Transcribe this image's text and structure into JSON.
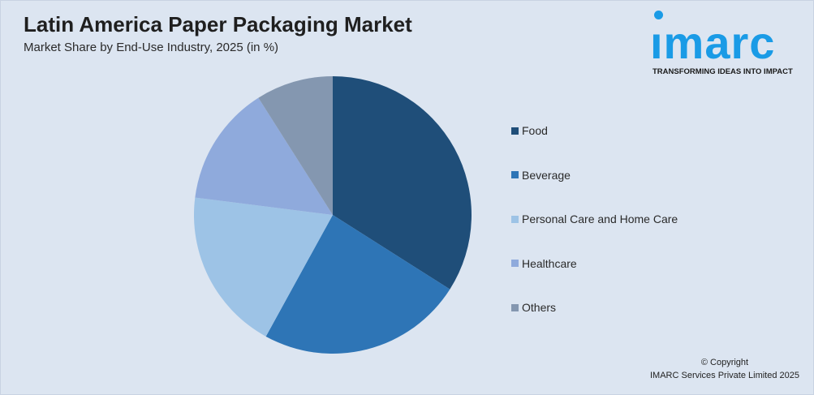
{
  "chart_data": {
    "type": "pie",
    "title": "Latin America Paper Packaging Market",
    "subtitle": "Market Share by End-Use Industry, 2025 (in %)",
    "categories": [
      "Food",
      "Beverage",
      "Personal Care and Home Care",
      "Healthcare",
      "Others"
    ],
    "values": [
      34,
      24,
      19,
      14,
      9
    ],
    "colors": [
      "#1f4e79",
      "#2e75b6",
      "#9dc3e6",
      "#8faadc",
      "#8497b0"
    ],
    "start_angle": "12 o'clock",
    "direction": "clockwise",
    "legend_position": "right"
  },
  "logo": {
    "text": "imarc",
    "tagline": "TRANSFORMING IDEAS INTO IMPACT"
  },
  "copyright": {
    "line1": "© Copyright",
    "line2": "IMARC Services Private Limited 2025"
  }
}
